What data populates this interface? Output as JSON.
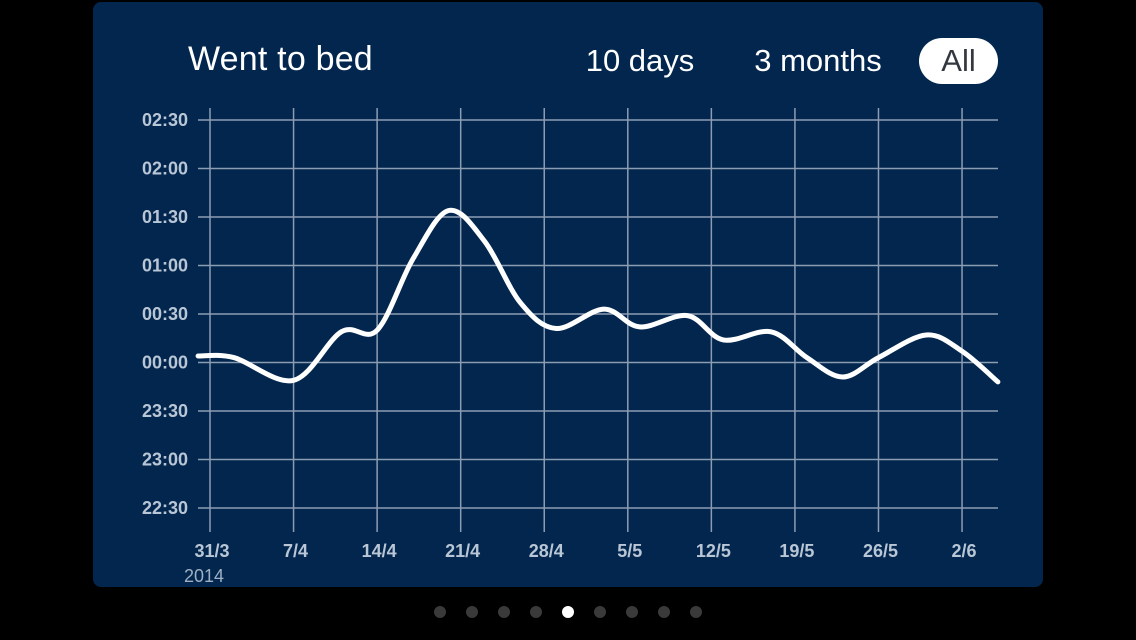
{
  "header": {
    "title": "Went to bed",
    "ranges": [
      {
        "label": "10 days",
        "active": false
      },
      {
        "label": "3 months",
        "active": false
      },
      {
        "label": "All",
        "active": true
      }
    ]
  },
  "colors": {
    "background": "#000000",
    "card": "#02264d",
    "grid": "#8c9db3",
    "line": "#ffffff",
    "tick_text": "#b9c6d6"
  },
  "chart_data": {
    "type": "line",
    "title": "Went to bed",
    "xlabel": "",
    "ylabel": "",
    "x_ticks": [
      "31/3",
      "7/4",
      "14/4",
      "21/4",
      "28/4",
      "5/5",
      "12/5",
      "19/5",
      "26/5",
      "2/6"
    ],
    "x_sublabel": "2014",
    "y_ticks": [
      "02:30",
      "02:00",
      "01:30",
      "01:00",
      "00:30",
      "00:00",
      "23:30",
      "23:00",
      "22:30"
    ],
    "ylim": [
      "22:30",
      "02:30"
    ],
    "xlim": [
      "2014-03-30",
      "2014-06-05"
    ],
    "grid": true,
    "legend": "none",
    "series": [
      {
        "values": [
          {
            "x": "2014-03-30",
            "y": "00:04"
          },
          {
            "x": "2014-04-02",
            "y": "00:03"
          },
          {
            "x": "2014-04-07",
            "y": "23:49"
          },
          {
            "x": "2014-04-11",
            "y": "00:19"
          },
          {
            "x": "2014-04-14",
            "y": "00:20"
          },
          {
            "x": "2014-04-17",
            "y": "01:04"
          },
          {
            "x": "2014-04-20",
            "y": "01:34"
          },
          {
            "x": "2014-04-23",
            "y": "01:15"
          },
          {
            "x": "2014-04-26",
            "y": "00:37"
          },
          {
            "x": "2014-04-29",
            "y": "00:21"
          },
          {
            "x": "2014-05-03",
            "y": "00:33"
          },
          {
            "x": "2014-05-06",
            "y": "00:22"
          },
          {
            "x": "2014-05-10",
            "y": "00:29"
          },
          {
            "x": "2014-05-13",
            "y": "00:14"
          },
          {
            "x": "2014-05-17",
            "y": "00:19"
          },
          {
            "x": "2014-05-20",
            "y": "00:03"
          },
          {
            "x": "2014-05-23",
            "y": "23:51"
          },
          {
            "x": "2014-05-26",
            "y": "00:03"
          },
          {
            "x": "2014-05-30",
            "y": "00:17"
          },
          {
            "x": "2014-06-02",
            "y": "00:07"
          },
          {
            "x": "2014-06-05",
            "y": "23:48"
          }
        ]
      }
    ]
  },
  "pager": {
    "count": 9,
    "active_index": 4
  }
}
